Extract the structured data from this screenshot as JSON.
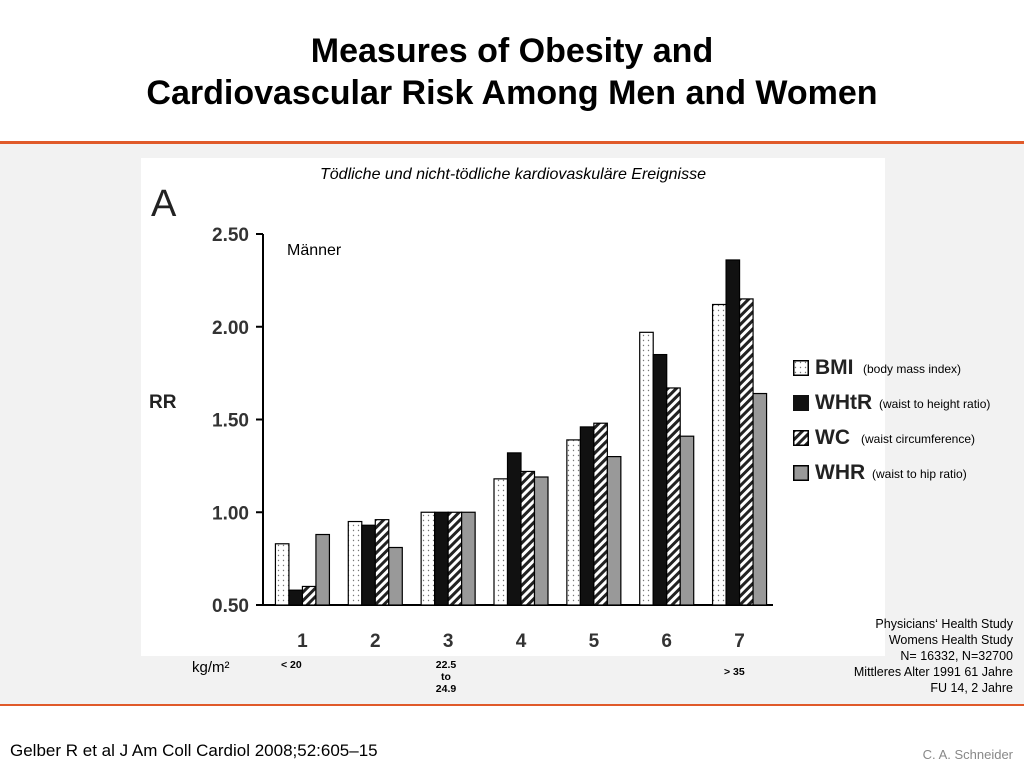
{
  "slide": {
    "title_line1": "Measures of Obesity and",
    "title_line2": "Cardiovascular Risk Among Men and Women",
    "citation": "Gelber R et al J Am Coll Cardiol 2008;52:605–15",
    "author": "C. A. Schneider",
    "accent_color": "#e05a2a"
  },
  "study_info": [
    "Physicians‘ Health Study",
    "Womens Health Study",
    "N= 16332, N=32700",
    "Mittleres Alter 1991 61 Jahre",
    "FU 14, 2 Jahre"
  ],
  "annotations": {
    "unit": "kg/m²",
    "bin_low": "< 20",
    "bin_mid_1": "22.5",
    "bin_mid_2": "to",
    "bin_mid_3": "24.9",
    "bin_high": "> 35"
  },
  "legend_desc": {
    "BMI": "(body mass index)",
    "WHtR": "(waist to height ratio)",
    "WC": "(waist circumference)",
    "WHR": "(waist to hip ratio)"
  },
  "chart_data": {
    "type": "bar",
    "title": "Tödliche und nicht-tödliche kardiovaskuläre Ereignisse",
    "panel_label": "A",
    "group_label": "Männer",
    "xlabel": "",
    "ylabel": "RR",
    "ylim": [
      0.5,
      2.5
    ],
    "yticks": [
      "0.50",
      "1.00",
      "1.50",
      "2.00",
      "2.50"
    ],
    "categories": [
      "1",
      "2",
      "3",
      "4",
      "5",
      "6",
      "7"
    ],
    "legend_position": "right",
    "grid": false,
    "series": [
      {
        "name": "BMI",
        "fill": "dotted",
        "values": [
          0.83,
          0.95,
          1.0,
          1.18,
          1.39,
          1.97,
          2.12
        ]
      },
      {
        "name": "WHtR",
        "fill": "black",
        "values": [
          0.58,
          0.93,
          1.0,
          1.32,
          1.46,
          1.85,
          2.36
        ]
      },
      {
        "name": "WC",
        "fill": "hatched",
        "values": [
          0.6,
          0.96,
          1.0,
          1.22,
          1.48,
          1.67,
          2.15
        ]
      },
      {
        "name": "WHR",
        "fill": "gray",
        "values": [
          0.88,
          0.81,
          1.0,
          1.19,
          1.3,
          1.41,
          1.64
        ]
      }
    ]
  }
}
